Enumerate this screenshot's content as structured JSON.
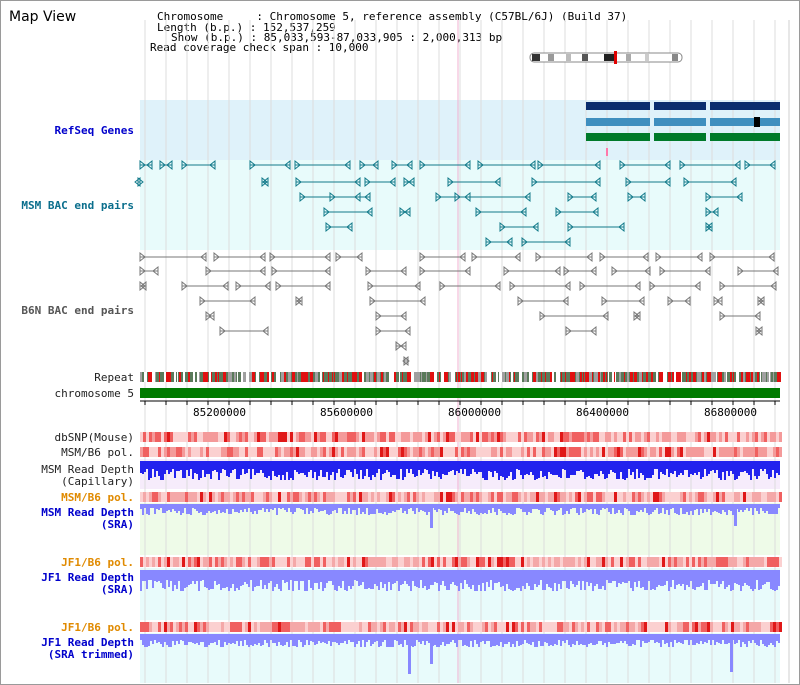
{
  "app": {
    "title": "Map View"
  },
  "info": {
    "chromosome_line": "Chromosome     : Chromosome 5, reference assembly (C57BL/6J) (Build 37)",
    "length_line": "Length (b.p.) : 152,537,259",
    "show_line": "Show (b.p.) : 85,033,593-87,033,905 : 2,000,313 bp",
    "span_line": "Read coverage check span : 10,000"
  },
  "tracks": {
    "refseq": "RefSeq Genes",
    "msm_bac": "MSM BAC end pairs",
    "b6n_bac": "B6N BAC end pairs",
    "repeat": "Repeat",
    "chromosome": "chromosome 5",
    "dbsnp": "dbSNP(Mouse)",
    "msm_pol1": "MSM/B6 pol.",
    "msm_depth_cap_1": "MSM Read Depth",
    "msm_depth_cap_2": "(Capillary)",
    "msm_pol2": "MSM/B6 pol.",
    "msm_depth_sra_1": "MSM Read Depth",
    "msm_depth_sra_2": "(SRA)",
    "jf1_pol1": "JF1/B6 pol.",
    "jf1_depth_1": "JF1 Read Depth",
    "jf1_depth_2": "(SRA)",
    "jf1_pol2": "JF1/B6 pol.",
    "jf1_trim_1": "JF1 Read Depth",
    "jf1_trim_2": "(SRA trimmed)"
  },
  "axis": {
    "ticks": [
      "85200000",
      "85600000",
      "86000000",
      "86400000",
      "86800000"
    ]
  },
  "colors": {
    "refseq_bg": "#dff2fa",
    "bac_bg": "#e8fbfb",
    "gene_dark": "#0a2e6e",
    "gene_mid": "#3f8fbf",
    "gene_green": "#007a2a",
    "repeat_red": "#e01010",
    "chrom_green": "#007a00",
    "depth_blue": "#2222ee",
    "depth_light": "#8888ff",
    "pol_red": "#f07878"
  }
}
